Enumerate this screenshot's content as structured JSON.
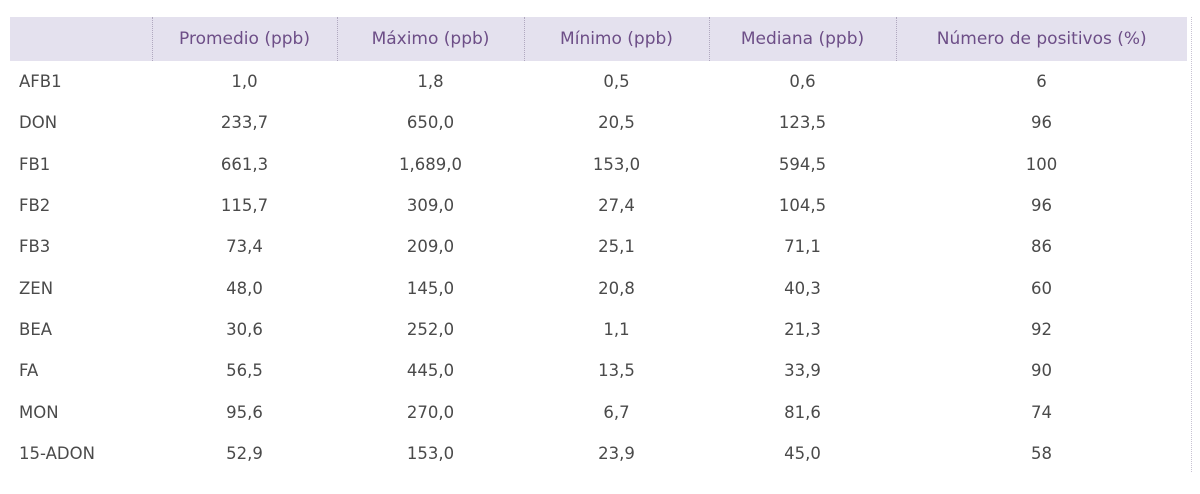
{
  "table": {
    "headers": [
      "",
      "Promedio (ppb)",
      "Máximo (ppb)",
      "Mínimo (ppb)",
      "Mediana (ppb)",
      "Número de positivos (%)"
    ],
    "rows": [
      [
        "AFB1",
        "1,0",
        "1,8",
        "0,5",
        "0,6",
        "6"
      ],
      [
        "DON",
        "233,7",
        "650,0",
        "20,5",
        "123,5",
        "96"
      ],
      [
        "FB1",
        "661,3",
        "1,689,0",
        "153,0",
        "594,5",
        "100"
      ],
      [
        "FB2",
        "115,7",
        "309,0",
        "27,4",
        "104,5",
        "96"
      ],
      [
        "FB3",
        "73,4",
        "209,0",
        "25,1",
        "71,1",
        "86"
      ],
      [
        "ZEN",
        "48,0",
        "145,0",
        "20,8",
        "40,3",
        "60"
      ],
      [
        "BEA",
        "30,6",
        "252,0",
        "1,1",
        "21,3",
        "92"
      ],
      [
        "FA",
        "56,5",
        "445,0",
        "13,5",
        "33,9",
        "90"
      ],
      [
        "MON",
        "95,6",
        "270,0",
        "6,7",
        "81,6",
        "74"
      ],
      [
        "15-ADON",
        "52,9",
        "153,0",
        "23,9",
        "45,0",
        "58"
      ]
    ]
  },
  "colors": {
    "header_bg": "#e4e1ee",
    "header_text": "#6d4e87",
    "body_text": "#4a4a4a"
  }
}
